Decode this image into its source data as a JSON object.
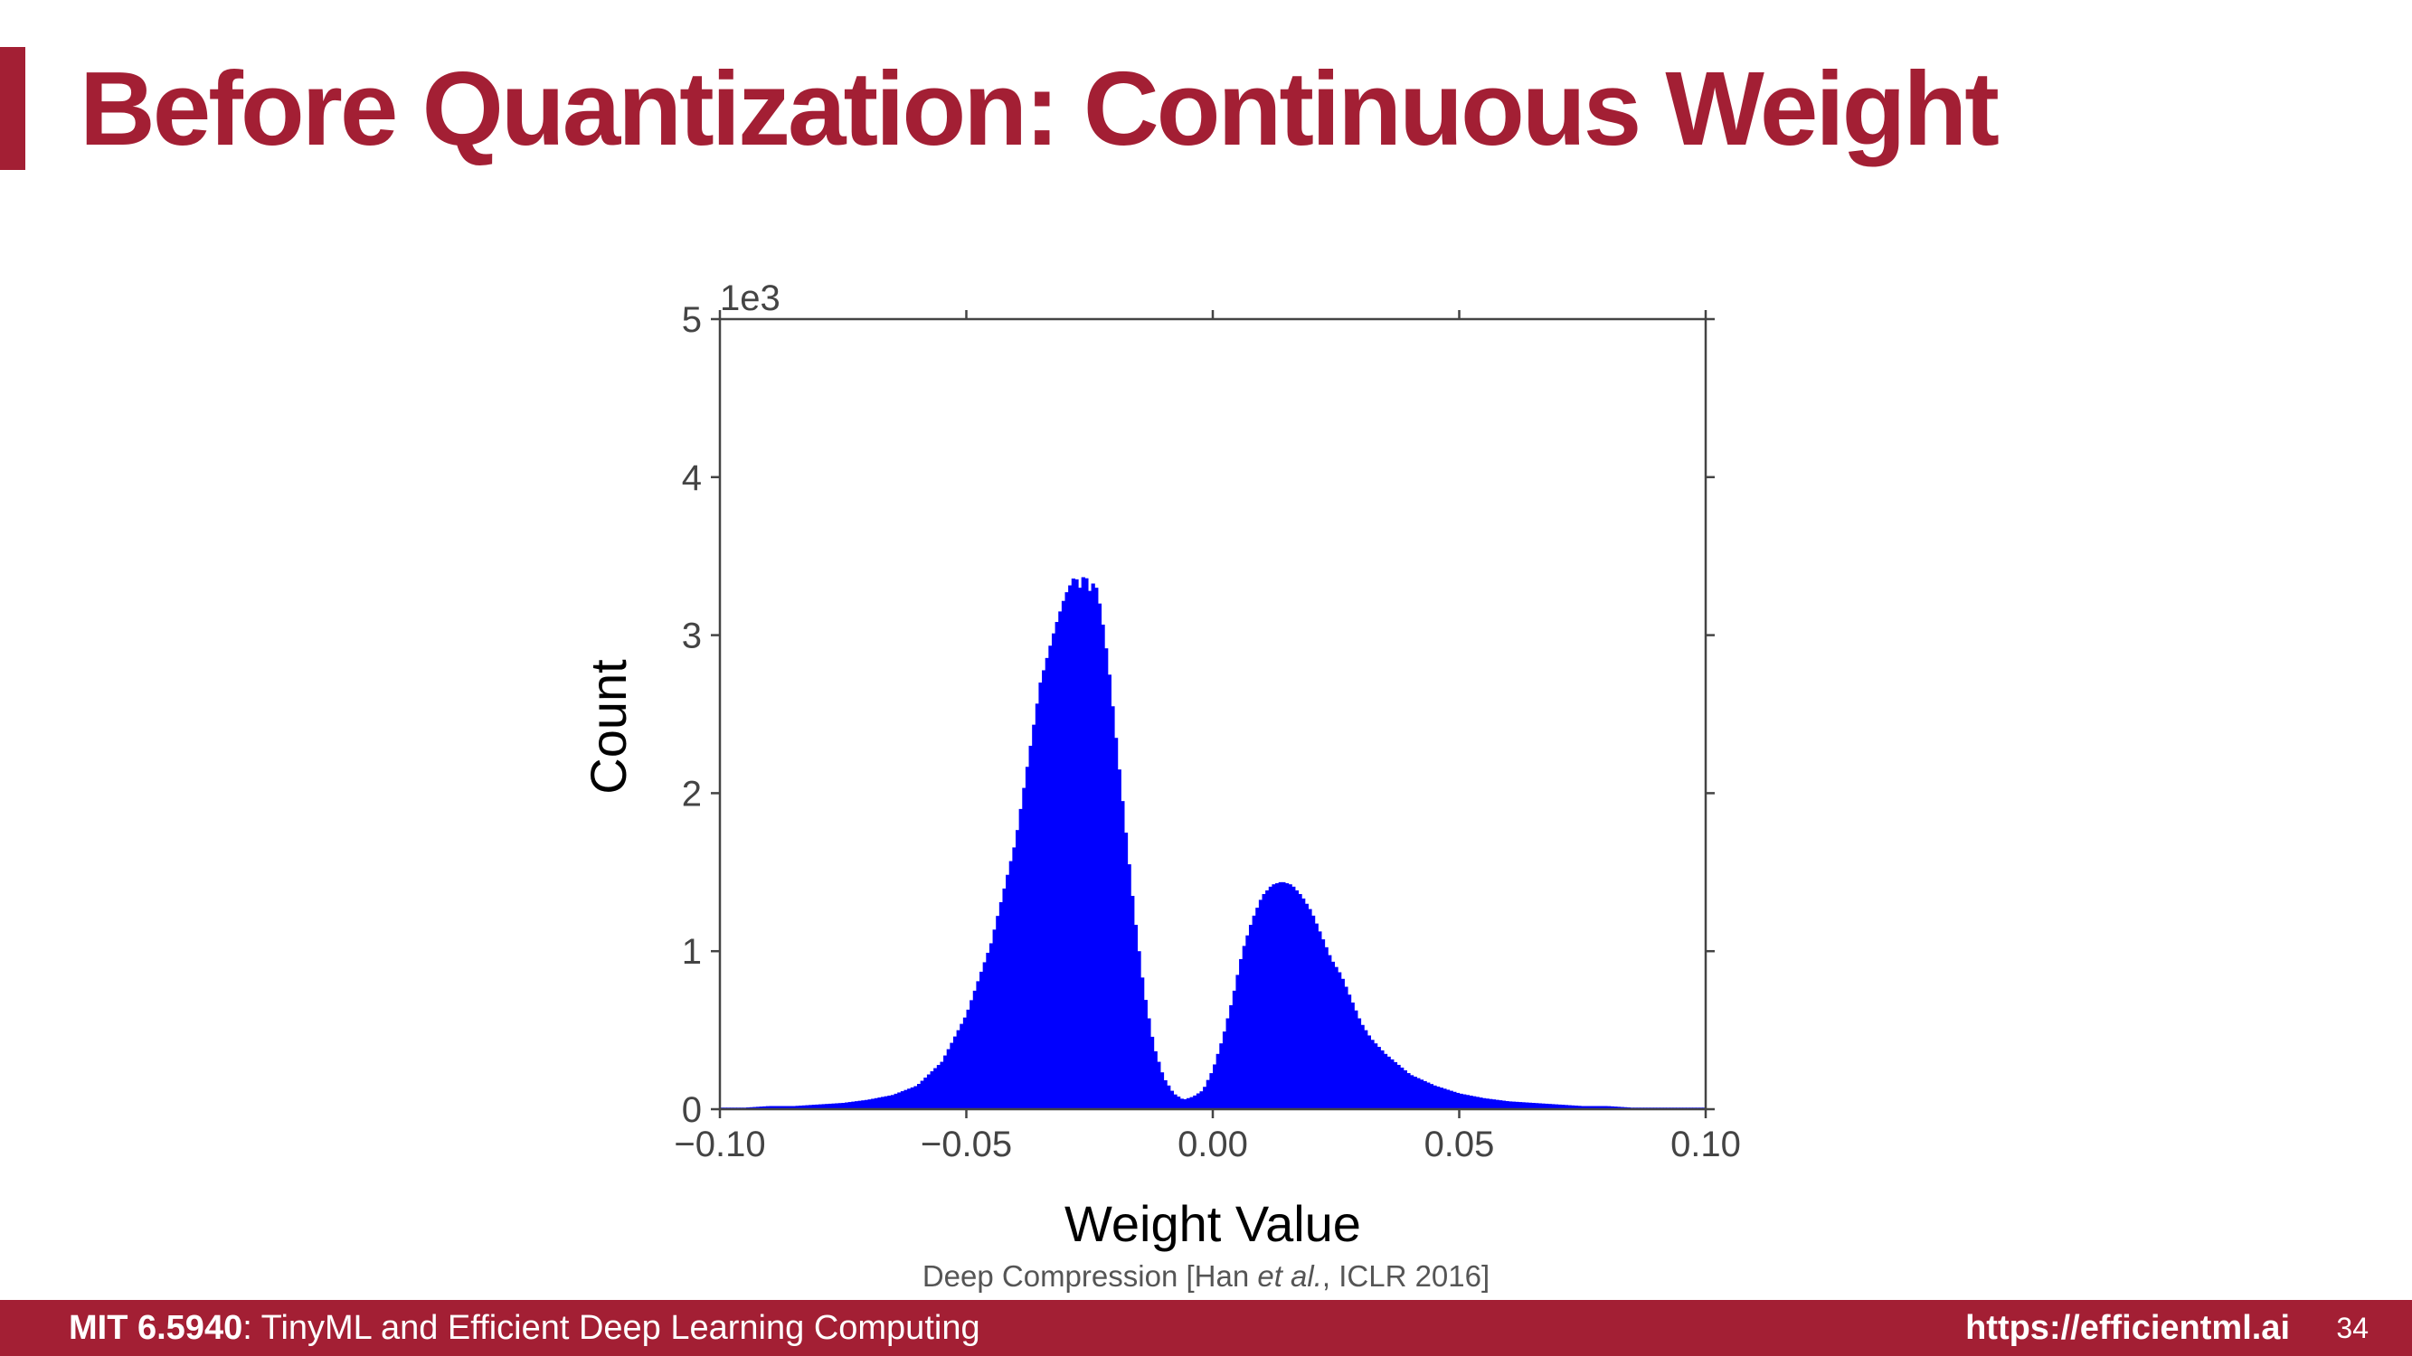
{
  "slide": {
    "title": "Before Quantization: Continuous Weight",
    "citation_prefix": "Deep Compression [Han ",
    "citation_italic": "et al.",
    "citation_suffix": ", ICLR 2016]",
    "footer_course_code": "MIT 6.5940",
    "footer_course_name": ": TinyML and Efficient Deep Learning Computing",
    "footer_url": "https://efficientml.ai",
    "page_number": "34",
    "accent_color": "#a31f34"
  },
  "chart_data": {
    "type": "bar",
    "xlabel": "Weight Value",
    "ylabel": "Count",
    "y_scale_label": "1e3",
    "xlim": [
      -0.1,
      0.1
    ],
    "ylim": [
      0,
      5
    ],
    "x_ticks": [
      "−0.10",
      "−0.05",
      "0.00",
      "0.05",
      "0.10"
    ],
    "y_ticks": [
      "0",
      "1",
      "2",
      "3",
      "4",
      "5"
    ],
    "bar_color": "#0000ff",
    "grid": false,
    "x": [
      -0.1,
      -0.095,
      -0.09,
      -0.085,
      -0.08,
      -0.075,
      -0.07,
      -0.065,
      -0.06,
      -0.055,
      -0.05,
      -0.045,
      -0.04,
      -0.037,
      -0.035,
      -0.032,
      -0.03,
      -0.028,
      -0.027,
      -0.026,
      -0.025,
      -0.024,
      -0.023,
      -0.022,
      -0.021,
      -0.02,
      -0.018,
      -0.016,
      -0.014,
      -0.012,
      -0.01,
      -0.008,
      -0.006,
      -0.004,
      -0.002,
      0.0,
      0.002,
      0.004,
      0.006,
      0.008,
      0.01,
      0.012,
      0.014,
      0.016,
      0.018,
      0.02,
      0.022,
      0.024,
      0.026,
      0.028,
      0.03,
      0.032,
      0.035,
      0.04,
      0.045,
      0.05,
      0.055,
      0.06,
      0.065,
      0.07,
      0.075,
      0.08,
      0.085,
      0.09,
      0.095,
      0.1
    ],
    "values": [
      0.01,
      0.01,
      0.02,
      0.02,
      0.03,
      0.04,
      0.06,
      0.09,
      0.15,
      0.3,
      0.6,
      1.05,
      1.7,
      2.3,
      2.7,
      3.05,
      3.25,
      3.38,
      3.3,
      3.4,
      3.28,
      3.35,
      3.2,
      3.0,
      2.75,
      2.45,
      1.85,
      1.25,
      0.75,
      0.4,
      0.2,
      0.1,
      0.06,
      0.08,
      0.12,
      0.25,
      0.45,
      0.7,
      1.0,
      1.2,
      1.35,
      1.42,
      1.44,
      1.42,
      1.35,
      1.25,
      1.1,
      0.95,
      0.85,
      0.7,
      0.55,
      0.45,
      0.35,
      0.22,
      0.15,
      0.1,
      0.07,
      0.05,
      0.04,
      0.03,
      0.02,
      0.02,
      0.01,
      0.01,
      0.01,
      0.01
    ]
  }
}
